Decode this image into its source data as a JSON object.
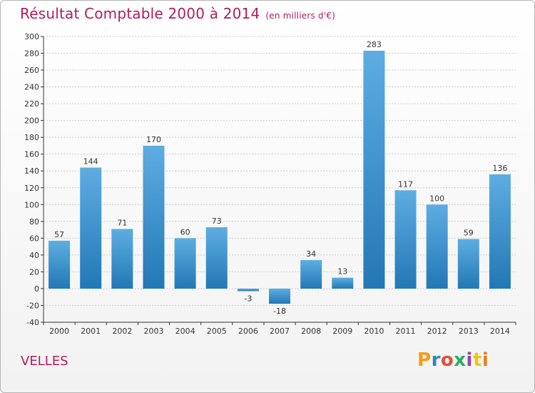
{
  "header": {
    "title": "Résultat Comptable 2000 à 2014",
    "subtitle": "(en milliers d'€)"
  },
  "footer": {
    "place": "VELLES",
    "logo": {
      "text": "Proxiti",
      "colors": [
        "#f39c12",
        "#2e86c1",
        "#e74c3c",
        "#27ae60",
        "#8e44ad",
        "#f1c40f",
        "#e67e22"
      ]
    }
  },
  "colors": {
    "title": "#b01e5b",
    "bar_light": "#5dade2",
    "bar_dark": "#2278b5",
    "grid": "#cccccc",
    "axis": "#333333"
  },
  "chart_data": {
    "type": "bar",
    "title": "Résultat Comptable 2000 à 2014",
    "subtitle": "(en milliers d'€)",
    "xlabel": "",
    "ylabel": "",
    "categories": [
      "2000",
      "2001",
      "2002",
      "2003",
      "2004",
      "2005",
      "2006",
      "2007",
      "2008",
      "2009",
      "2010",
      "2011",
      "2012",
      "2013",
      "2014"
    ],
    "values": [
      57,
      144,
      71,
      170,
      60,
      73,
      -3,
      -18,
      34,
      13,
      283,
      117,
      100,
      59,
      136
    ],
    "value_labels": [
      "57",
      "144",
      "71",
      "170",
      "60",
      "73",
      "-3",
      "-18",
      "34",
      "13",
      "283",
      "117",
      "100",
      "59",
      "136"
    ],
    "ylim": [
      -40,
      300
    ],
    "yticks": [
      -40,
      -20,
      0,
      20,
      40,
      60,
      80,
      100,
      120,
      140,
      160,
      180,
      200,
      220,
      240,
      260,
      280,
      300
    ],
    "grid": true
  }
}
